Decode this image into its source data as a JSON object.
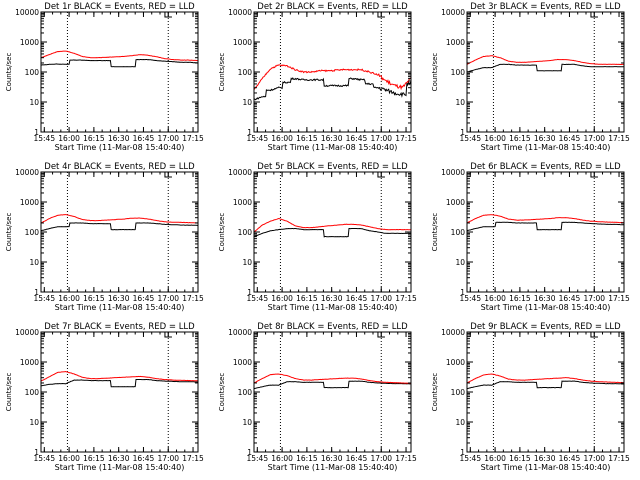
{
  "x_ticks": [
    "15:45",
    "16:00",
    "16:15",
    "16:30",
    "16:45",
    "17:00",
    "17:15"
  ],
  "y_ticks": [
    "1",
    "10",
    "100",
    "1000",
    "10000"
  ],
  "ylabel": "Counts/sec",
  "xlabel": "Start Time (11-Mar-08 15:40:40)",
  "colors": {
    "events": "#000000",
    "lld": "#ff0000",
    "axes": "#000000"
  },
  "chart_data": [
    {
      "type": "line",
      "title": "Det 1r BLACK = Events, RED = LLD",
      "xlabel": "Start Time (11-Mar-08 15:40:40)",
      "ylabel": "Counts/sec",
      "x_range": [
        "15:43",
        "17:18"
      ],
      "y_range": [
        1,
        10000
      ],
      "y_scale": "log",
      "vertical_markers": [
        "15:59",
        "17:00"
      ],
      "x": [
        "15:43",
        "15:48",
        "15:53",
        "15:58",
        "16:03",
        "16:08",
        "16:13",
        "16:18",
        "16:23",
        "16:28",
        "16:33",
        "16:38",
        "16:43",
        "16:48",
        "16:53",
        "16:58",
        "17:03",
        "17:08",
        "17:13",
        "17:18"
      ],
      "series": [
        {
          "name": "BLACK = Events",
          "color": "#000000",
          "values": [
            170,
            180,
            185,
            180,
            250,
            250,
            240,
            240,
            240,
            150,
            150,
            150,
            260,
            260,
            240,
            230,
            220,
            210,
            210,
            200
          ]
        },
        {
          "name": "RED = LLD",
          "color": "#ff0000",
          "values": [
            300,
            380,
            480,
            500,
            420,
            330,
            300,
            300,
            310,
            320,
            330,
            350,
            380,
            360,
            320,
            280,
            260,
            250,
            250,
            240
          ]
        }
      ]
    },
    {
      "type": "line",
      "title": "Det 2r BLACK = Events, RED = LLD",
      "xlabel": "Start Time (11-Mar-08 15:40:40)",
      "ylabel": "Counts/sec",
      "x_range": [
        "15:43",
        "17:18"
      ],
      "y_range": [
        1,
        10000
      ],
      "y_scale": "log",
      "vertical_markers": [
        "15:59",
        "17:00"
      ],
      "x": [
        "15:43",
        "15:48",
        "15:53",
        "15:58",
        "16:03",
        "16:08",
        "16:13",
        "16:18",
        "16:23",
        "16:28",
        "16:33",
        "16:38",
        "16:43",
        "16:48",
        "16:53",
        "16:58",
        "17:03",
        "17:08",
        "17:13",
        "17:18"
      ],
      "series": [
        {
          "name": "BLACK = Events",
          "color": "#000000",
          "values": [
            12,
            15,
            25,
            30,
            45,
            60,
            55,
            55,
            55,
            35,
            35,
            35,
            60,
            55,
            40,
            30,
            25,
            20,
            18,
            40
          ]
        },
        {
          "name": "RED = LLD",
          "color": "#ff0000",
          "values": [
            25,
            60,
            130,
            170,
            160,
            120,
            100,
            100,
            110,
            110,
            115,
            120,
            120,
            120,
            100,
            80,
            50,
            35,
            30,
            60
          ]
        }
      ]
    },
    {
      "type": "line",
      "title": "Det 3r BLACK = Events, RED = LLD",
      "xlabel": "Start Time (11-Mar-08 15:40:40)",
      "ylabel": "Counts/sec",
      "x_range": [
        "15:43",
        "17:18"
      ],
      "y_range": [
        1,
        10000
      ],
      "y_scale": "log",
      "vertical_markers": [
        "15:59",
        "17:00"
      ],
      "x": [
        "15:43",
        "15:48",
        "15:53",
        "15:58",
        "16:03",
        "16:08",
        "16:13",
        "16:18",
        "16:23",
        "16:28",
        "16:33",
        "16:38",
        "16:43",
        "16:48",
        "16:53",
        "16:58",
        "17:03",
        "17:08",
        "17:13",
        "17:18"
      ],
      "series": [
        {
          "name": "BLACK = Events",
          "color": "#000000",
          "values": [
            100,
            120,
            140,
            140,
            180,
            180,
            170,
            170,
            170,
            110,
            110,
            110,
            180,
            180,
            160,
            150,
            150,
            150,
            150,
            150
          ]
        },
        {
          "name": "RED = LLD",
          "color": "#ff0000",
          "values": [
            180,
            250,
            330,
            350,
            300,
            230,
            210,
            210,
            220,
            230,
            240,
            260,
            260,
            240,
            210,
            190,
            180,
            180,
            180,
            180
          ]
        }
      ]
    },
    {
      "type": "line",
      "title": "Det 4r BLACK = Events, RED = LLD",
      "xlabel": "Start Time (11-Mar-08 15:40:40)",
      "ylabel": "Counts/sec",
      "x_range": [
        "15:43",
        "17:18"
      ],
      "y_range": [
        1,
        10000
      ],
      "y_scale": "log",
      "vertical_markers": [
        "15:59",
        "17:00"
      ],
      "x": [
        "15:43",
        "15:48",
        "15:53",
        "15:58",
        "16:03",
        "16:08",
        "16:13",
        "16:18",
        "16:23",
        "16:28",
        "16:33",
        "16:38",
        "16:43",
        "16:48",
        "16:53",
        "16:58",
        "17:03",
        "17:08",
        "17:13",
        "17:18"
      ],
      "series": [
        {
          "name": "BLACK = Events",
          "color": "#000000",
          "values": [
            110,
            130,
            150,
            150,
            200,
            200,
            190,
            190,
            190,
            120,
            120,
            120,
            200,
            200,
            190,
            180,
            175,
            170,
            170,
            165
          ]
        },
        {
          "name": "RED = LLD",
          "color": "#ff0000",
          "values": [
            200,
            280,
            360,
            380,
            330,
            260,
            240,
            240,
            250,
            260,
            270,
            290,
            290,
            270,
            240,
            220,
            210,
            210,
            205,
            200
          ]
        }
      ]
    },
    {
      "type": "line",
      "title": "Det 5r BLACK = Events, RED = LLD",
      "xlabel": "Start Time (11-Mar-08 15:40:40)",
      "ylabel": "Counts/sec",
      "x_range": [
        "15:43",
        "17:18"
      ],
      "y_range": [
        1,
        10000
      ],
      "y_scale": "log",
      "vertical_markers": [
        "15:59",
        "17:00"
      ],
      "x": [
        "15:43",
        "15:48",
        "15:53",
        "15:58",
        "16:03",
        "16:08",
        "16:13",
        "16:18",
        "16:23",
        "16:28",
        "16:33",
        "16:38",
        "16:43",
        "16:48",
        "16:53",
        "16:58",
        "17:03",
        "17:08",
        "17:13",
        "17:18"
      ],
      "series": [
        {
          "name": "BLACK = Events",
          "color": "#000000",
          "values": [
            70,
            90,
            110,
            120,
            130,
            130,
            120,
            120,
            120,
            70,
            70,
            70,
            130,
            130,
            110,
            100,
            90,
            90,
            90,
            90
          ]
        },
        {
          "name": "RED = LLD",
          "color": "#ff0000",
          "values": [
            100,
            170,
            230,
            280,
            230,
            160,
            140,
            140,
            150,
            160,
            170,
            180,
            180,
            170,
            150,
            130,
            120,
            120,
            120,
            120
          ]
        }
      ]
    },
    {
      "type": "line",
      "title": "Det 6r BLACK = Events, RED = LLD",
      "xlabel": "Start Time (11-Mar-08 15:40:40)",
      "ylabel": "Counts/sec",
      "x_range": [
        "15:43",
        "17:18"
      ],
      "y_range": [
        1,
        10000
      ],
      "y_scale": "log",
      "vertical_markers": [
        "15:59",
        "17:00"
      ],
      "x": [
        "15:43",
        "15:48",
        "15:53",
        "15:58",
        "16:03",
        "16:08",
        "16:13",
        "16:18",
        "16:23",
        "16:28",
        "16:33",
        "16:38",
        "16:43",
        "16:48",
        "16:53",
        "16:58",
        "17:03",
        "17:08",
        "17:13",
        "17:18"
      ],
      "series": [
        {
          "name": "BLACK = Events",
          "color": "#000000",
          "values": [
            110,
            130,
            150,
            150,
            210,
            210,
            200,
            200,
            200,
            120,
            120,
            120,
            210,
            210,
            200,
            190,
            185,
            180,
            180,
            175
          ]
        },
        {
          "name": "RED = LLD",
          "color": "#ff0000",
          "values": [
            200,
            280,
            360,
            380,
            340,
            270,
            250,
            250,
            260,
            270,
            280,
            300,
            300,
            280,
            250,
            230,
            220,
            215,
            210,
            205
          ]
        }
      ]
    },
    {
      "type": "line",
      "title": "Det 7r BLACK = Events, RED = LLD",
      "xlabel": "Start Time (11-Mar-08 15:40:40)",
      "ylabel": "Counts/sec",
      "x_range": [
        "15:43",
        "17:18"
      ],
      "y_range": [
        1,
        10000
      ],
      "y_scale": "log",
      "vertical_markers": [
        "15:59",
        "17:00"
      ],
      "x": [
        "15:43",
        "15:48",
        "15:53",
        "15:58",
        "16:03",
        "16:08",
        "16:13",
        "16:18",
        "16:23",
        "16:28",
        "16:33",
        "16:38",
        "16:43",
        "16:48",
        "16:53",
        "16:58",
        "17:03",
        "17:08",
        "17:13",
        "17:18"
      ],
      "series": [
        {
          "name": "BLACK = Events",
          "color": "#000000",
          "values": [
            160,
            180,
            190,
            190,
            250,
            250,
            240,
            240,
            240,
            150,
            150,
            150,
            260,
            260,
            240,
            230,
            225,
            220,
            220,
            215
          ]
        },
        {
          "name": "RED = LLD",
          "color": "#ff0000",
          "values": [
            230,
            320,
            450,
            480,
            400,
            310,
            280,
            280,
            290,
            300,
            310,
            320,
            330,
            310,
            280,
            260,
            250,
            245,
            240,
            235
          ]
        }
      ]
    },
    {
      "type": "line",
      "title": "Det 8r BLACK = Events, RED = LLD",
      "xlabel": "Start Time (11-Mar-08 15:40:40)",
      "ylabel": "Counts/sec",
      "x_range": [
        "15:43",
        "17:18"
      ],
      "y_range": [
        1,
        10000
      ],
      "y_scale": "log",
      "vertical_markers": [
        "15:59",
        "17:00"
      ],
      "x": [
        "15:43",
        "15:48",
        "15:53",
        "15:58",
        "16:03",
        "16:08",
        "16:13",
        "16:18",
        "16:23",
        "16:28",
        "16:33",
        "16:38",
        "16:43",
        "16:48",
        "16:53",
        "16:58",
        "17:03",
        "17:08",
        "17:13",
        "17:18"
      ],
      "series": [
        {
          "name": "BLACK = Events",
          "color": "#000000",
          "values": [
            130,
            150,
            170,
            170,
            220,
            220,
            210,
            210,
            210,
            140,
            140,
            140,
            230,
            230,
            210,
            200,
            195,
            190,
            190,
            185
          ]
        },
        {
          "name": "RED = LLD",
          "color": "#ff0000",
          "values": [
            200,
            280,
            380,
            400,
            350,
            280,
            250,
            250,
            260,
            270,
            280,
            290,
            290,
            270,
            240,
            220,
            210,
            205,
            200,
            195
          ]
        }
      ]
    },
    {
      "type": "line",
      "title": "Det 9r BLACK = Events, RED = LLD",
      "xlabel": "Start Time (11-Mar-08 15:40:40)",
      "ylabel": "Counts/sec",
      "x_range": [
        "15:43",
        "17:18"
      ],
      "y_range": [
        1,
        10000
      ],
      "y_scale": "log",
      "vertical_markers": [
        "15:59",
        "17:00"
      ],
      "x": [
        "15:43",
        "15:48",
        "15:53",
        "15:58",
        "16:03",
        "16:08",
        "16:13",
        "16:18",
        "16:23",
        "16:28",
        "16:33",
        "16:38",
        "16:43",
        "16:48",
        "16:53",
        "16:58",
        "17:03",
        "17:08",
        "17:13",
        "17:18"
      ],
      "series": [
        {
          "name": "BLACK = Events",
          "color": "#000000",
          "values": [
            130,
            150,
            170,
            170,
            220,
            220,
            210,
            210,
            210,
            140,
            140,
            140,
            230,
            230,
            210,
            200,
            195,
            190,
            190,
            185
          ]
        },
        {
          "name": "RED = LLD",
          "color": "#ff0000",
          "values": [
            200,
            280,
            370,
            400,
            340,
            270,
            250,
            250,
            260,
            270,
            280,
            290,
            300,
            280,
            250,
            230,
            220,
            215,
            210,
            205
          ]
        }
      ]
    }
  ]
}
